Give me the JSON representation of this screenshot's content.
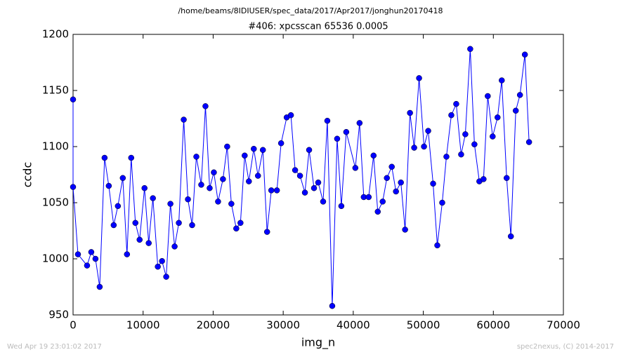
{
  "chart_data": {
    "type": "line",
    "suptitle": "/home/beams/8IDIUSER/spec_data/2017/Apr2017/jonghun20170418",
    "title": "#406: xpcsscan 65536 0.0005",
    "xlabel": "img_n",
    "ylabel": "ccdc",
    "footer_left": "Wed Apr 19 23:01:02 2017",
    "footer_right": "spec2nexus, (C) 2014-2017",
    "xlim": [
      0,
      70000
    ],
    "xticks": [
      0,
      10000,
      20000,
      30000,
      40000,
      50000,
      60000,
      70000
    ],
    "ylim": [
      950,
      1200
    ],
    "yticks": [
      950,
      1000,
      1050,
      1100,
      1150,
      1200
    ],
    "grid": false,
    "series": [
      {
        "color": "#0000ff",
        "x": [
          0,
          0,
          700,
          2000,
          2600,
          3200,
          3800,
          4500,
          5100,
          5800,
          6400,
          7100,
          7700,
          8300,
          8900,
          9500,
          10200,
          10800,
          11400,
          12100,
          12700,
          13300,
          13900,
          14500,
          15100,
          15800,
          16400,
          17000,
          17600,
          18300,
          18900,
          19500,
          20100,
          20700,
          21400,
          22000,
          22600,
          23300,
          23900,
          24500,
          25100,
          25800,
          26400,
          27100,
          27700,
          28300,
          29100,
          29700,
          30500,
          31100,
          31700,
          32400,
          33100,
          33700,
          34400,
          35000,
          35700,
          36300,
          37000,
          37700,
          38300,
          39000,
          40300,
          40900,
          41500,
          42200,
          42900,
          43500,
          44200,
          44800,
          45500,
          46100,
          46800,
          47400,
          48100,
          48700,
          49400,
          50100,
          50700,
          51400,
          52000,
          52700,
          53300,
          54000,
          54700,
          55400,
          56000,
          56700,
          57300,
          58000,
          58600,
          59200,
          59900,
          60600,
          61200,
          61900,
          62500,
          63200,
          63800,
          64500,
          65100
        ],
        "values": [
          1142,
          1064,
          1004,
          994,
          1006,
          1000,
          975,
          1090,
          1065,
          1030,
          1047,
          1072,
          1004,
          1090,
          1032,
          1017,
          1063,
          1014,
          1054,
          993,
          998,
          984,
          1049,
          1011,
          1032,
          1124,
          1053,
          1030,
          1091,
          1066,
          1136,
          1063,
          1077,
          1051,
          1071,
          1100,
          1049,
          1027,
          1032,
          1092,
          1069,
          1098,
          1074,
          1097,
          1024,
          1061,
          1061,
          1103,
          1126,
          1128,
          1079,
          1074,
          1059,
          1097,
          1063,
          1068,
          1051,
          1123,
          958,
          1107,
          1047,
          1113,
          1081,
          1121,
          1055,
          1055,
          1092,
          1042,
          1051,
          1072,
          1082,
          1060,
          1068,
          1026,
          1130,
          1099,
          1161,
          1100,
          1114,
          1067,
          1012,
          1050,
          1091,
          1128,
          1138,
          1093,
          1111,
          1187,
          1102,
          1069,
          1071,
          1145,
          1109,
          1126,
          1159,
          1072,
          1020,
          1132,
          1146,
          1182,
          1104
        ]
      }
    ]
  }
}
